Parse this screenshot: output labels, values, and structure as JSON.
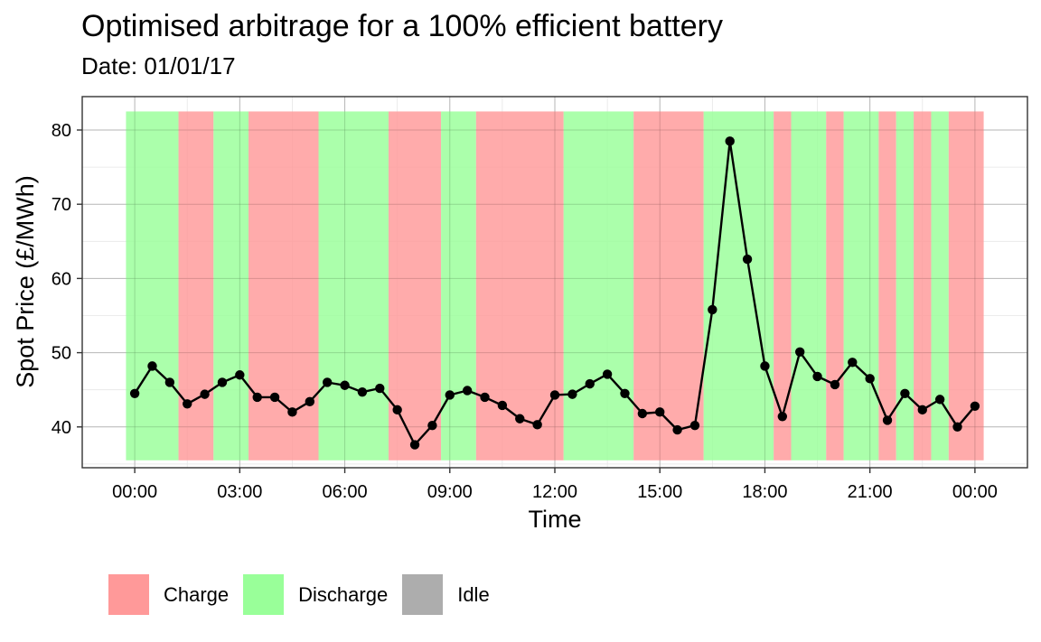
{
  "chart_data": {
    "type": "line",
    "title": "Optimised arbitrage for a 100% efficient battery",
    "subtitle": "Date: 01/01/17",
    "xlabel": "Time",
    "ylabel": "Spot Price (£/MWh)",
    "x_ticks": [
      "00:00",
      "03:00",
      "06:00",
      "09:00",
      "12:00",
      "15:00",
      "18:00",
      "21:00",
      "00:00"
    ],
    "y_ticks": [
      40,
      50,
      60,
      70,
      80
    ],
    "xlim_hours": [
      -1.5,
      25.5
    ],
    "ylim": [
      34.5,
      84.5
    ],
    "grid": true,
    "legend_position": "bottom",
    "legend": [
      {
        "label": "Charge",
        "color": "#ff9999"
      },
      {
        "label": "Discharge",
        "color": "#99ff99"
      },
      {
        "label": "Idle",
        "color": "#adadad"
      }
    ],
    "series": [
      {
        "x_hours": [
          0,
          0.5,
          1,
          1.5,
          2,
          2.5,
          3,
          3.5,
          4,
          4.5,
          5,
          5.5,
          6,
          6.5,
          7,
          7.5,
          8,
          8.5,
          9,
          9.5,
          10,
          10.5,
          11,
          11.5,
          12,
          12.5,
          13,
          13.5,
          14,
          14.5,
          15,
          15.5,
          16,
          16.5,
          17,
          17.5,
          18,
          18.5,
          19,
          19.5,
          20,
          20.5,
          21,
          21.5,
          22,
          22.5,
          23,
          23.5,
          24
        ],
        "values": [
          44.5,
          48.2,
          46.0,
          43.1,
          44.4,
          46.0,
          47.0,
          44.0,
          44.0,
          42.0,
          43.4,
          46.0,
          45.6,
          44.7,
          45.2,
          42.3,
          37.6,
          40.2,
          44.3,
          44.9,
          44.0,
          42.9,
          41.1,
          40.3,
          44.3,
          44.4,
          45.8,
          47.1,
          44.5,
          41.8,
          42.0,
          39.6,
          40.2,
          55.8,
          78.5,
          62.6,
          48.2,
          41.4,
          50.1,
          46.8,
          45.7,
          48.7,
          46.5,
          40.9,
          44.5,
          42.3,
          43.7,
          40.0,
          42.8
        ]
      }
    ],
    "bands": {
      "ymin": 35.5,
      "ymax": 82.5,
      "segments": [
        {
          "start": -0.25,
          "end": 1.25,
          "state": "Discharge"
        },
        {
          "start": 1.25,
          "end": 2.25,
          "state": "Charge"
        },
        {
          "start": 2.25,
          "end": 3.25,
          "state": "Discharge"
        },
        {
          "start": 3.25,
          "end": 5.25,
          "state": "Charge"
        },
        {
          "start": 5.25,
          "end": 7.25,
          "state": "Discharge"
        },
        {
          "start": 7.25,
          "end": 8.75,
          "state": "Charge"
        },
        {
          "start": 8.75,
          "end": 9.75,
          "state": "Discharge"
        },
        {
          "start": 9.75,
          "end": 12.25,
          "state": "Charge"
        },
        {
          "start": 12.25,
          "end": 14.25,
          "state": "Discharge"
        },
        {
          "start": 14.25,
          "end": 16.25,
          "state": "Charge"
        },
        {
          "start": 16.25,
          "end": 18.25,
          "state": "Discharge"
        },
        {
          "start": 18.25,
          "end": 18.75,
          "state": "Charge"
        },
        {
          "start": 18.75,
          "end": 19.75,
          "state": "Discharge"
        },
        {
          "start": 19.75,
          "end": 20.25,
          "state": "Charge"
        },
        {
          "start": 20.25,
          "end": 21.25,
          "state": "Discharge"
        },
        {
          "start": 21.25,
          "end": 21.75,
          "state": "Charge"
        },
        {
          "start": 21.75,
          "end": 22.25,
          "state": "Discharge"
        },
        {
          "start": 22.25,
          "end": 22.75,
          "state": "Charge"
        },
        {
          "start": 22.75,
          "end": 23.25,
          "state": "Discharge"
        },
        {
          "start": 23.25,
          "end": 24.25,
          "state": "Charge"
        }
      ]
    }
  }
}
